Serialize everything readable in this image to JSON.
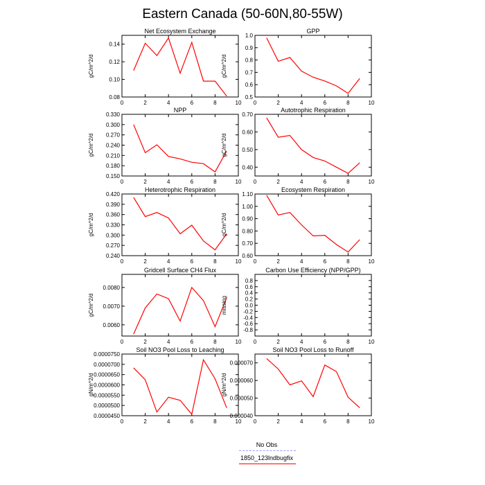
{
  "title": "Eastern Canada (50-60N,80-55W)",
  "colors": {
    "model": "#ff0000",
    "obs": "#9999ff"
  },
  "legend": [
    {
      "label": "No Obs",
      "color": "#9999ff",
      "style": "dashed"
    },
    {
      "label": "1850_123lndbugfix",
      "color": "#ff0000",
      "style": "solid"
    }
  ],
  "chart_data": [
    {
      "type": "line",
      "title": "Net Ecosystem Exchange",
      "ylabel": "gC/m^2/d",
      "xlim": [
        0,
        10
      ],
      "xticks": [
        0,
        2,
        4,
        6,
        8,
        10
      ],
      "ylim": [
        0.08,
        0.15
      ],
      "yticks": [
        0.08,
        0.1,
        0.12,
        0.14
      ],
      "yticklabels": [
        "0.08",
        "0.10",
        "0.12",
        "0.14"
      ],
      "x": [
        1,
        2,
        3,
        4,
        5,
        6,
        7,
        8,
        9
      ],
      "values": [
        0.11,
        0.141,
        0.127,
        0.147,
        0.107,
        0.142,
        0.098,
        0.098,
        0.081
      ]
    },
    {
      "type": "line",
      "title": "GPP",
      "ylabel": "gC/m^2/d",
      "xlim": [
        0,
        10
      ],
      "xticks": [
        0,
        2,
        4,
        6,
        8,
        10
      ],
      "ylim": [
        0.5,
        1.0
      ],
      "yticks": [
        0.5,
        0.6,
        0.7,
        0.8,
        0.9,
        1.0
      ],
      "yticklabels": [
        "0.5",
        "0.6",
        "0.7",
        "0.8",
        "0.9",
        "1.0"
      ],
      "x": [
        1,
        2,
        3,
        4,
        5,
        6,
        7,
        8,
        9
      ],
      "values": [
        0.98,
        0.79,
        0.82,
        0.71,
        0.66,
        0.63,
        0.59,
        0.53,
        0.65
      ]
    },
    {
      "type": "line",
      "title": "NPP",
      "ylabel": "gC/m^2/d",
      "xlim": [
        0,
        10
      ],
      "xticks": [
        0,
        2,
        4,
        6,
        8,
        10
      ],
      "ylim": [
        0.15,
        0.33
      ],
      "yticks": [
        0.15,
        0.18,
        0.21,
        0.24,
        0.27,
        0.3,
        0.33
      ],
      "yticklabels": [
        "0.150",
        "0.180",
        "0.210",
        "0.240",
        "0.270",
        "0.300",
        "0.330"
      ],
      "x": [
        1,
        2,
        3,
        4,
        5,
        6,
        7,
        8,
        9
      ],
      "values": [
        0.3,
        0.218,
        0.241,
        0.207,
        0.2,
        0.19,
        0.186,
        0.162,
        0.223
      ]
    },
    {
      "type": "line",
      "title": "Autotrophic Respiration",
      "ylabel": "gC/m^2/d",
      "xlim": [
        0,
        10
      ],
      "xticks": [
        0,
        2,
        4,
        6,
        8,
        10
      ],
      "ylim": [
        0.35,
        0.7
      ],
      "yticks": [
        0.4,
        0.5,
        0.6,
        0.7
      ],
      "yticklabels": [
        "0.40",
        "0.50",
        "0.60",
        "0.70"
      ],
      "x": [
        1,
        2,
        3,
        4,
        5,
        6,
        7,
        8,
        9
      ],
      "values": [
        0.68,
        0.57,
        0.58,
        0.5,
        0.455,
        0.435,
        0.4,
        0.365,
        0.425
      ]
    },
    {
      "type": "line",
      "title": "Heterotrophic Respiration",
      "ylabel": "gC/m^2/d",
      "xlim": [
        0,
        10
      ],
      "xticks": [
        0,
        2,
        4,
        6,
        8,
        10
      ],
      "ylim": [
        0.24,
        0.42
      ],
      "yticks": [
        0.24,
        0.27,
        0.3,
        0.33,
        0.36,
        0.39,
        0.42
      ],
      "yticklabels": [
        "0.240",
        "0.270",
        "0.300",
        "0.330",
        "0.360",
        "0.390",
        "0.420"
      ],
      "x": [
        1,
        2,
        3,
        4,
        5,
        6,
        7,
        8,
        9
      ],
      "values": [
        0.41,
        0.354,
        0.366,
        0.35,
        0.304,
        0.329,
        0.283,
        0.257,
        0.304
      ]
    },
    {
      "type": "line",
      "title": "Ecosystem Respiration",
      "ylabel": "gC/m^2/d",
      "xlim": [
        0,
        10
      ],
      "xticks": [
        0,
        2,
        4,
        6,
        8,
        10
      ],
      "ylim": [
        0.6,
        1.1
      ],
      "yticks": [
        0.6,
        0.7,
        0.8,
        0.9,
        1.0,
        1.1
      ],
      "yticklabels": [
        "0.60",
        "0.70",
        "0.80",
        "0.90",
        "1.00",
        "1.10"
      ],
      "x": [
        1,
        2,
        3,
        4,
        5,
        6,
        7,
        8,
        9
      ],
      "values": [
        1.09,
        0.93,
        0.95,
        0.85,
        0.76,
        0.765,
        0.69,
        0.63,
        0.73
      ]
    },
    {
      "type": "line",
      "title": "Gridcell Surface CH4 Flux",
      "ylabel": "gC/m^2/d",
      "xlim": [
        0,
        10
      ],
      "xticks": [
        0,
        2,
        4,
        6,
        8,
        10
      ],
      "ylim": [
        0.0054,
        0.0087
      ],
      "yticks": [
        0.006,
        0.007,
        0.008
      ],
      "yticklabels": [
        "0.0060",
        "0.0070",
        "0.0080"
      ],
      "x": [
        1,
        2,
        3,
        4,
        5,
        6,
        7,
        8,
        9
      ],
      "values": [
        0.0055,
        0.0069,
        0.00765,
        0.0074,
        0.0062,
        0.008,
        0.0073,
        0.0059,
        0.00745
      ]
    },
    {
      "type": "line",
      "title": "Carbon Use Efficiency (NPP/GPP)",
      "ylabel": "missing",
      "xlim": [
        0,
        10
      ],
      "xticks": [
        0,
        2,
        4,
        6,
        8,
        10
      ],
      "ylim": [
        -1,
        1
      ],
      "yticks": [
        -0.8,
        -0.6,
        -0.4,
        -0.2,
        0.0,
        0.2,
        0.4,
        0.6,
        0.8
      ],
      "yticklabels": [
        "-0.8",
        "-0.6",
        "-0.4",
        "-0.2",
        "0.0",
        "0.2",
        "0.4",
        "0.6",
        "0.8"
      ],
      "x": [],
      "values": []
    },
    {
      "type": "line",
      "title": "Soil NO3 Pool Loss to Leaching",
      "ylabel": "gN/m^2/d",
      "xlim": [
        0,
        10
      ],
      "xticks": [
        0,
        2,
        4,
        6,
        8,
        10
      ],
      "ylim": [
        4.5e-05,
        7.5e-05
      ],
      "yticks": [
        4.5e-05,
        5e-05,
        5.5e-05,
        6e-05,
        6.5e-05,
        7e-05,
        7.5e-05
      ],
      "yticklabels": [
        "0.0000450",
        "0.0000500",
        "0.0000550",
        "0.0000600",
        "0.0000650",
        "0.0000700",
        "0.0000750"
      ],
      "x": [
        1,
        2,
        3,
        4,
        5,
        6,
        7,
        8,
        9
      ],
      "values": [
        6.83e-05,
        6.25e-05,
        4.68e-05,
        5.4e-05,
        5.25e-05,
        4.57e-05,
        7.22e-05,
        6.3e-05,
        4.88e-05
      ]
    },
    {
      "type": "line",
      "title": "Soil NO3 Pool Loss to Runoff",
      "ylabel": "gN/m^2/d",
      "xlim": [
        0,
        10
      ],
      "xticks": [
        0,
        2,
        4,
        6,
        8,
        10
      ],
      "ylim": [
        4e-05,
        7.5e-05
      ],
      "yticks": [
        4e-05,
        5e-05,
        6e-05,
        7e-05
      ],
      "yticklabels": [
        "0.000040",
        "0.000050",
        "0.000060",
        "0.000070"
      ],
      "x": [
        1,
        2,
        3,
        4,
        5,
        6,
        7,
        8,
        9
      ],
      "values": [
        7.25e-05,
        6.65e-05,
        5.75e-05,
        5.98e-05,
        5.08e-05,
        6.88e-05,
        6.5e-05,
        5.05e-05,
        4.45e-05
      ]
    }
  ]
}
